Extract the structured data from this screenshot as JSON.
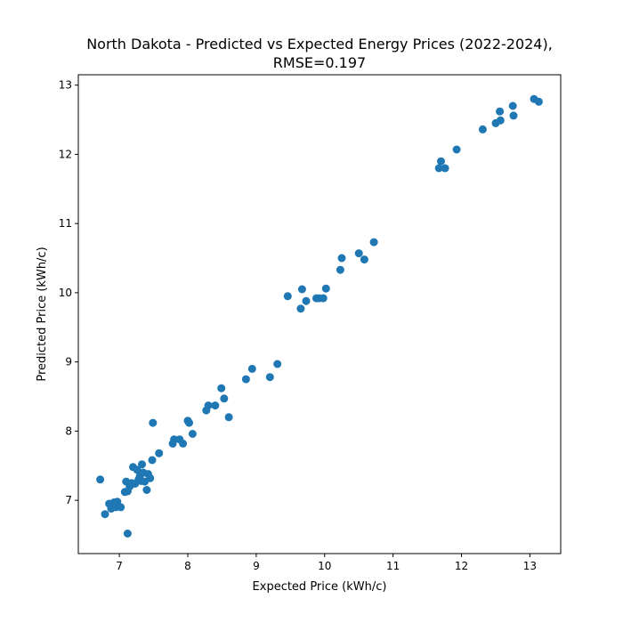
{
  "chart_data": {
    "type": "scatter",
    "title": "North Dakota - Predicted vs Expected Energy Prices (2022-2024),",
    "subtitle": "RMSE=0.197",
    "xlabel": "Expected Price (kWh/c)",
    "ylabel": "Predicted Price (kWh/c)",
    "xlim": [
      6.4,
      13.45
    ],
    "ylim": [
      6.23,
      13.15
    ],
    "xticks": [
      7,
      8,
      9,
      10,
      11,
      12,
      13
    ],
    "yticks": [
      7,
      8,
      9,
      10,
      11,
      12,
      13
    ],
    "grid": false,
    "point_color": "#1f77b4",
    "points": [
      [
        6.72,
        7.3
      ],
      [
        6.79,
        6.8
      ],
      [
        6.85,
        6.95
      ],
      [
        6.88,
        6.88
      ],
      [
        6.92,
        6.97
      ],
      [
        6.95,
        6.9
      ],
      [
        6.97,
        6.98
      ],
      [
        7.02,
        6.9
      ],
      [
        7.08,
        7.12
      ],
      [
        7.1,
        7.27
      ],
      [
        7.12,
        7.13
      ],
      [
        7.12,
        6.52
      ],
      [
        7.15,
        7.2
      ],
      [
        7.18,
        7.25
      ],
      [
        7.2,
        7.48
      ],
      [
        7.23,
        7.24
      ],
      [
        7.26,
        7.44
      ],
      [
        7.28,
        7.3
      ],
      [
        7.3,
        7.35
      ],
      [
        7.32,
        7.28
      ],
      [
        7.33,
        7.52
      ],
      [
        7.35,
        7.4
      ],
      [
        7.37,
        7.27
      ],
      [
        7.4,
        7.15
      ],
      [
        7.42,
        7.38
      ],
      [
        7.45,
        7.32
      ],
      [
        7.48,
        7.58
      ],
      [
        7.49,
        8.12
      ],
      [
        7.58,
        7.68
      ],
      [
        7.78,
        7.82
      ],
      [
        7.8,
        7.88
      ],
      [
        7.88,
        7.88
      ],
      [
        7.93,
        7.82
      ],
      [
        8.0,
        8.15
      ],
      [
        8.02,
        8.12
      ],
      [
        8.07,
        7.96
      ],
      [
        8.27,
        8.3
      ],
      [
        8.3,
        8.37
      ],
      [
        8.4,
        8.37
      ],
      [
        8.49,
        8.62
      ],
      [
        8.53,
        8.47
      ],
      [
        8.6,
        8.2
      ],
      [
        8.85,
        8.75
      ],
      [
        8.94,
        8.9
      ],
      [
        9.2,
        8.78
      ],
      [
        9.31,
        8.97
      ],
      [
        9.46,
        9.95
      ],
      [
        9.65,
        9.77
      ],
      [
        9.67,
        10.05
      ],
      [
        9.73,
        9.88
      ],
      [
        9.88,
        9.92
      ],
      [
        9.92,
        9.92
      ],
      [
        9.98,
        9.92
      ],
      [
        10.02,
        10.06
      ],
      [
        10.23,
        10.33
      ],
      [
        10.25,
        10.5
      ],
      [
        10.5,
        10.57
      ],
      [
        10.58,
        10.48
      ],
      [
        10.72,
        10.73
      ],
      [
        11.67,
        11.8
      ],
      [
        11.7,
        11.9
      ],
      [
        11.76,
        11.8
      ],
      [
        11.93,
        12.07
      ],
      [
        12.31,
        12.36
      ],
      [
        12.5,
        12.45
      ],
      [
        12.56,
        12.62
      ],
      [
        12.57,
        12.49
      ],
      [
        12.75,
        12.7
      ],
      [
        12.76,
        12.56
      ],
      [
        13.06,
        12.8
      ],
      [
        13.13,
        12.76
      ]
    ]
  }
}
